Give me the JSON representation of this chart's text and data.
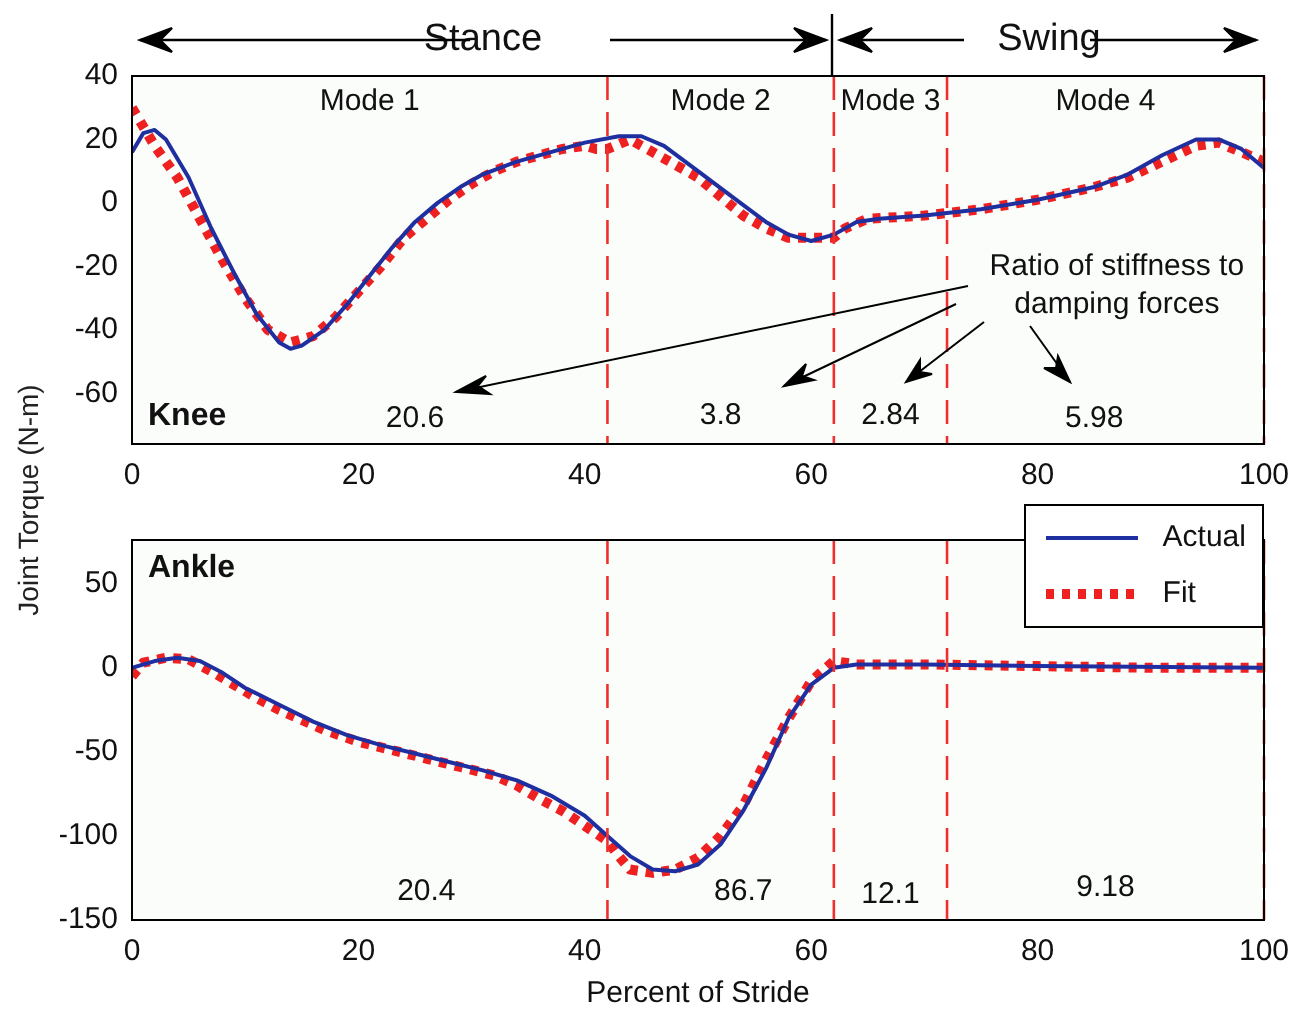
{
  "chart_data": [
    {
      "type": "line",
      "title": "Knee",
      "ylabel": "Joint Torque (N-m)",
      "xlim": [
        0,
        100
      ],
      "xticks": [
        0,
        20,
        40,
        60,
        80,
        100
      ],
      "ylim": [
        -76,
        40
      ],
      "yticks": [
        -60,
        -40,
        -20,
        0,
        20,
        40
      ],
      "grid": false,
      "legend": false,
      "series": [
        {
          "color": "#1f2fa0",
          "line_style": "solid",
          "x": [
            0,
            1,
            2,
            3,
            5,
            7,
            9,
            11,
            13,
            14,
            15,
            17,
            19,
            21,
            23,
            25,
            27,
            29,
            31,
            34,
            37,
            40,
            43,
            45,
            47,
            50,
            53,
            56,
            58,
            60,
            62,
            64,
            66,
            70,
            75,
            80,
            85,
            88,
            91,
            94,
            96,
            98,
            100
          ],
          "values": [
            16,
            22,
            23,
            20,
            8,
            -8,
            -22,
            -35,
            -44,
            -46,
            -45,
            -40,
            -32,
            -23,
            -14,
            -6,
            0,
            5,
            9,
            13,
            16,
            19,
            21,
            21,
            18,
            10,
            2,
            -6,
            -10,
            -12,
            -10,
            -6,
            -5,
            -4,
            -2,
            1,
            5,
            9,
            15,
            20,
            20,
            17,
            11
          ]
        },
        {
          "color": "#ee2020",
          "line_style": "dotted",
          "x": [
            0,
            1,
            2,
            4,
            6,
            8,
            10,
            12,
            14,
            16,
            18,
            20,
            22,
            24,
            26,
            28,
            30,
            32,
            34,
            36,
            38,
            40,
            41,
            42,
            44,
            46,
            48,
            50,
            52,
            54,
            56,
            58,
            60,
            62,
            63,
            65,
            70,
            75,
            80,
            85,
            88,
            91,
            94,
            96,
            98,
            100
          ],
          "values": [
            30,
            24,
            18,
            8,
            -5,
            -18,
            -30,
            -40,
            -44,
            -42,
            -36,
            -28,
            -20,
            -11,
            -5,
            1,
            6,
            10,
            13,
            15,
            17,
            18,
            17,
            17,
            20,
            16,
            12,
            8,
            2,
            -4,
            -8,
            -11,
            -11,
            -11,
            -8,
            -5,
            -4,
            -2,
            1,
            5,
            8,
            13,
            18,
            19,
            16,
            13
          ]
        }
      ],
      "ref_lines": [
        {
          "axis": "x",
          "value": 42,
          "color": "#ee3030",
          "line_style": "dashed"
        },
        {
          "axis": "x",
          "value": 62,
          "color": "#ee3030",
          "line_style": "dashed"
        },
        {
          "axis": "x",
          "value": 72,
          "color": "#ee3030",
          "line_style": "dashed"
        },
        {
          "axis": "x",
          "value": 100,
          "color": "#ee3030",
          "line_style": "dashed"
        }
      ],
      "annotations": [
        "Stance",
        "Swing",
        "Mode 1",
        "Mode 2",
        "Mode 3",
        "Mode 4",
        "Ratio of stiffness to damping forces",
        "20.6",
        "3.8",
        "2.84",
        "5.98"
      ]
    },
    {
      "type": "line",
      "title": "Ankle",
      "xlabel": "Percent of Stride",
      "xlim": [
        0,
        100
      ],
      "xticks": [
        0,
        20,
        40,
        60,
        80,
        100
      ],
      "ylim": [
        -150,
        76
      ],
      "yticks": [
        -150,
        -100,
        -50,
        0,
        50
      ],
      "grid": false,
      "legend": "top right",
      "series": [
        {
          "name": "Actual",
          "color": "#1f2fa0",
          "line_style": "solid",
          "x": [
            0,
            2,
            4,
            6,
            8,
            10,
            13,
            16,
            19,
            22,
            25,
            28,
            31,
            34,
            37,
            40,
            42,
            44,
            46,
            48,
            50,
            52,
            54,
            56,
            58,
            60,
            62,
            64,
            70,
            80,
            100
          ],
          "values": [
            0,
            4,
            6,
            4,
            -3,
            -12,
            -22,
            -32,
            -40,
            -46,
            -51,
            -56,
            -61,
            -67,
            -76,
            -88,
            -100,
            -112,
            -120,
            -121,
            -117,
            -105,
            -85,
            -60,
            -30,
            -10,
            0,
            2,
            2,
            1,
            0
          ]
        },
        {
          "name": "Fit",
          "color": "#ee2020",
          "line_style": "dotted",
          "x": [
            0,
            1,
            3,
            5,
            7,
            9,
            11,
            13,
            15,
            17,
            20,
            23,
            26,
            29,
            32,
            34,
            36,
            38,
            40,
            42,
            43,
            44,
            46,
            48,
            50,
            52,
            54,
            56,
            58,
            60,
            61,
            62,
            64,
            70,
            80,
            90,
            100
          ],
          "values": [
            -5,
            3,
            6,
            5,
            -2,
            -10,
            -18,
            -25,
            -31,
            -37,
            -44,
            -49,
            -54,
            -59,
            -64,
            -70,
            -78,
            -85,
            -94,
            -103,
            -112,
            -120,
            -122,
            -120,
            -113,
            -100,
            -82,
            -55,
            -30,
            -8,
            -2,
            4,
            2,
            2,
            1,
            0,
            0
          ]
        }
      ],
      "ref_lines": [
        {
          "axis": "x",
          "value": 42,
          "color": "#ee3030",
          "line_style": "dashed"
        },
        {
          "axis": "x",
          "value": 62,
          "color": "#ee3030",
          "line_style": "dashed"
        },
        {
          "axis": "x",
          "value": 72,
          "color": "#ee3030",
          "line_style": "dashed"
        },
        {
          "axis": "x",
          "value": 100,
          "color": "#ee3030",
          "line_style": "dashed"
        }
      ],
      "annotations": [
        "20.4",
        "86.7",
        "12.1",
        "9.18"
      ]
    }
  ]
}
